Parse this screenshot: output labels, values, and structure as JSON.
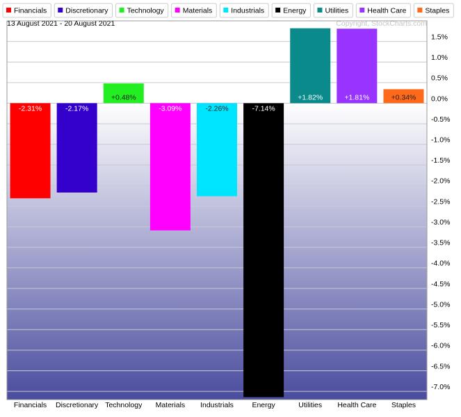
{
  "chart_data": {
    "type": "bar",
    "subtitle": "13 August 2021 - 20 August 2021",
    "watermark": "Copyright, StockCharts.com",
    "categories": [
      "Financials",
      "Discretionary",
      "Technology",
      "Materials",
      "Industrials",
      "Energy",
      "Utilities",
      "Health Care",
      "Staples"
    ],
    "values": [
      -2.31,
      -2.17,
      0.48,
      -3.09,
      -2.26,
      -7.14,
      1.82,
      1.81,
      0.34
    ],
    "value_labels": [
      "-2.31%",
      "-2.17%",
      "+0.48%",
      "-3.09%",
      "-2.26%",
      "-7.14%",
      "+1.82%",
      "+1.81%",
      "+0.34%"
    ],
    "colors": [
      "#ff0000",
      "#3300cc",
      "#22ee22",
      "#ff00ff",
      "#00e5ff",
      "#000000",
      "#0a8a8a",
      "#9933ff",
      "#ff6a1a"
    ],
    "ylim": [
      -7.2,
      2.0
    ],
    "yticks": [
      {
        "value": 1.5,
        "label": "1.5%"
      },
      {
        "value": 1.0,
        "label": "1.0%"
      },
      {
        "value": 0.5,
        "label": "0.5%"
      },
      {
        "value": 0.0,
        "label": "0.0%"
      },
      {
        "value": -0.5,
        "label": "-0.5%"
      },
      {
        "value": -1.0,
        "label": "-1.0%"
      },
      {
        "value": -1.5,
        "label": "-1.5%"
      },
      {
        "value": -2.0,
        "label": "-2.0%"
      },
      {
        "value": -2.5,
        "label": "-2.5%"
      },
      {
        "value": -3.0,
        "label": "-3.0%"
      },
      {
        "value": -3.5,
        "label": "-3.5%"
      },
      {
        "value": -4.0,
        "label": "-4.0%"
      },
      {
        "value": -4.5,
        "label": "-4.5%"
      },
      {
        "value": -5.0,
        "label": "-5.0%"
      },
      {
        "value": -5.5,
        "label": "-5.5%"
      },
      {
        "value": -6.0,
        "label": "-6.0%"
      },
      {
        "value": -6.5,
        "label": "-6.5%"
      },
      {
        "value": -7.0,
        "label": "-7.0%"
      }
    ],
    "grid": true
  }
}
